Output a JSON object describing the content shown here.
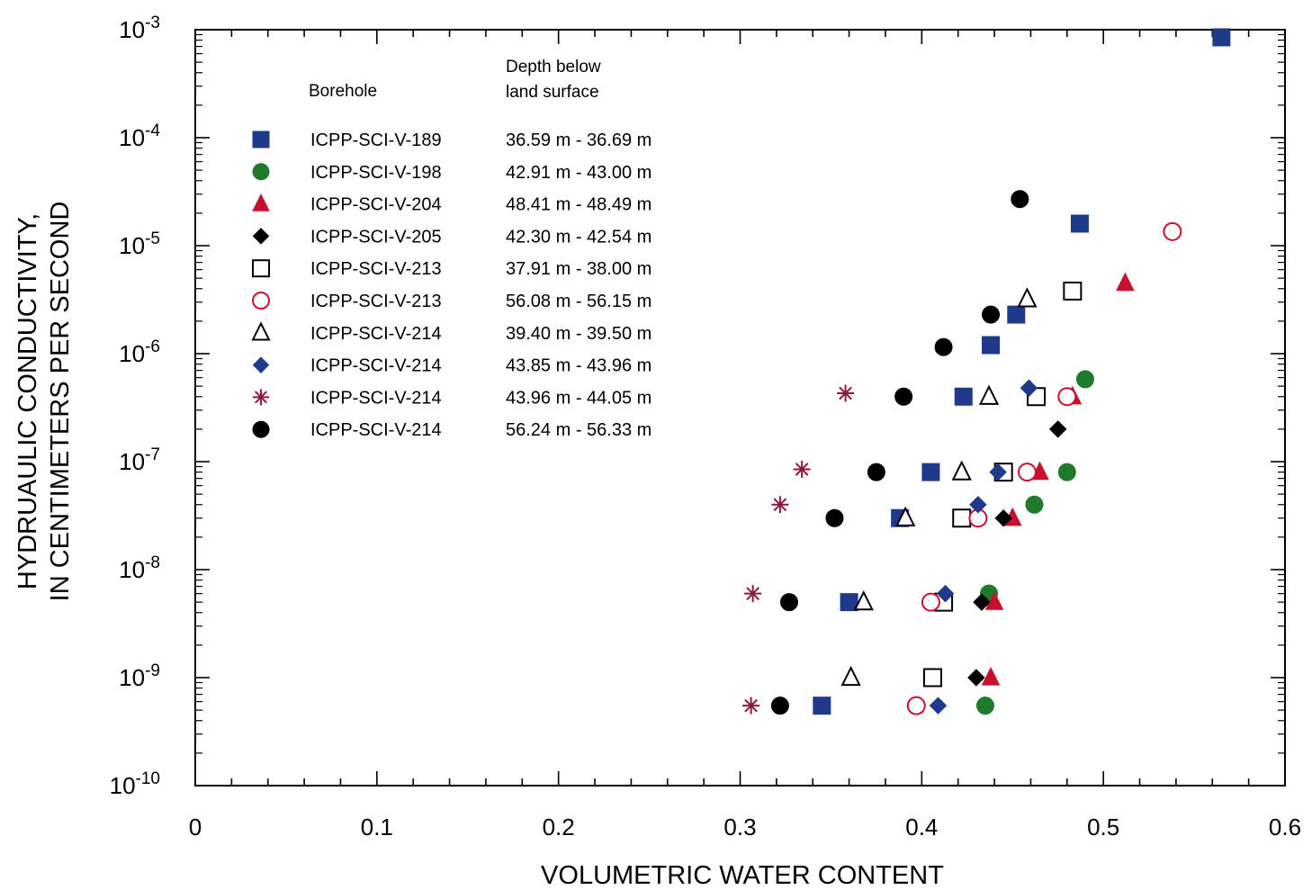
{
  "chart_data": {
    "type": "scatter",
    "xlabel": "VOLUMETRIC WATER CONTENT",
    "ylabel_lines": [
      "HYDRUAULIC CONDUCTIVITY,",
      "IN CENTIMETERS PER SECOND"
    ],
    "xlim": [
      0,
      0.6
    ],
    "ylim": [
      1e-10,
      0.001
    ],
    "yscale": "log",
    "x_ticks": [
      "0",
      "0.1",
      "0.2",
      "0.3",
      "0.4",
      "0.5",
      "0.6"
    ],
    "y_ticks": [
      {
        "base": "10",
        "exp": "-3"
      },
      {
        "base": "10",
        "exp": "-4"
      },
      {
        "base": "10",
        "exp": "-5"
      },
      {
        "base": "10",
        "exp": "-6"
      },
      {
        "base": "10",
        "exp": "-7"
      },
      {
        "base": "10",
        "exp": "-8"
      },
      {
        "base": "10",
        "exp": "-9"
      },
      {
        "base": "10",
        "exp": "-10"
      }
    ],
    "legend": {
      "placement": "top-left",
      "header_borehole": "Borehole",
      "header_depth_lines": [
        "Depth below",
        "land surface"
      ]
    },
    "series": [
      {
        "name": "ICPP-SCI-V-189",
        "depth": "36.59 m - 36.69 m",
        "marker": "square",
        "filled": true,
        "color": "#1f3a8a",
        "points": [
          [
            0.565,
            0.00085
          ],
          [
            0.487,
            1.6e-05
          ],
          [
            0.452,
            2.3e-06
          ],
          [
            0.438,
            1.2e-06
          ],
          [
            0.423,
            4e-07
          ],
          [
            0.405,
            8e-08
          ],
          [
            0.388,
            3e-08
          ],
          [
            0.36,
            5e-09
          ],
          [
            0.345,
            5.5e-10
          ]
        ]
      },
      {
        "name": "ICPP-SCI-V-198",
        "depth": "42.91 m - 43.00 m",
        "marker": "circle",
        "filled": true,
        "color": "#1e7b2c",
        "points": [
          [
            0.49,
            5.8e-07
          ],
          [
            0.48,
            8e-08
          ],
          [
            0.462,
            4e-08
          ],
          [
            0.437,
            6e-09
          ],
          [
            0.435,
            5.5e-10
          ]
        ]
      },
      {
        "name": "ICPP-SCI-V-204",
        "depth": "48.41 m - 48.49 m",
        "marker": "triangle",
        "filled": true,
        "color": "#c8102e",
        "points": [
          [
            0.512,
            4.5e-06
          ],
          [
            0.483,
            4e-07
          ],
          [
            0.465,
            8e-08
          ],
          [
            0.45,
            3e-08
          ],
          [
            0.44,
            5e-09
          ],
          [
            0.438,
            1e-09
          ]
        ]
      },
      {
        "name": "ICPP-SCI-V-205",
        "depth": "42.30 m - 42.54 m",
        "marker": "diamond",
        "filled": true,
        "color": "#000000",
        "points": [
          [
            0.475,
            2e-07
          ],
          [
            0.445,
            3e-08
          ],
          [
            0.433,
            5e-09
          ],
          [
            0.43,
            1e-09
          ]
        ]
      },
      {
        "name": "ICPP-SCI-V-213",
        "depth": "37.91 m - 38.00 m",
        "marker": "square",
        "filled": false,
        "color": "#000000",
        "points": [
          [
            0.483,
            3.8e-06
          ],
          [
            0.463,
            4e-07
          ],
          [
            0.445,
            8e-08
          ],
          [
            0.422,
            3e-08
          ],
          [
            0.412,
            5e-09
          ],
          [
            0.406,
            1e-09
          ]
        ]
      },
      {
        "name": "ICPP-SCI-V-213",
        "depth": "56.08 m - 56.15 m",
        "marker": "circle",
        "filled": false,
        "color": "#c8102e",
        "points": [
          [
            0.538,
            1.35e-05
          ],
          [
            0.48,
            4e-07
          ],
          [
            0.458,
            8e-08
          ],
          [
            0.431,
            3e-08
          ],
          [
            0.405,
            5e-09
          ],
          [
            0.397,
            5.5e-10
          ]
        ]
      },
      {
        "name": "ICPP-SCI-V-214",
        "depth": "39.40 m - 39.50 m",
        "marker": "triangle",
        "filled": false,
        "color": "#000000",
        "points": [
          [
            0.458,
            3.2e-06
          ],
          [
            0.437,
            4e-07
          ],
          [
            0.422,
            8e-08
          ],
          [
            0.391,
            3e-08
          ],
          [
            0.368,
            5e-09
          ],
          [
            0.361,
            1e-09
          ]
        ]
      },
      {
        "name": "ICPP-SCI-V-214",
        "depth": "43.85 m - 43.96 m",
        "marker": "diamond",
        "filled": true,
        "color": "#1f3a8a",
        "points": [
          [
            0.459,
            4.8e-07
          ],
          [
            0.442,
            8e-08
          ],
          [
            0.431,
            4e-08
          ],
          [
            0.413,
            6e-09
          ],
          [
            0.409,
            5.5e-10
          ]
        ]
      },
      {
        "name": "ICPP-SCI-V-214",
        "depth": "43.96 m - 44.05 m",
        "marker": "asterisk",
        "filled": false,
        "color": "#8b1a3a",
        "points": [
          [
            0.358,
            4.3e-07
          ],
          [
            0.334,
            8.5e-08
          ],
          [
            0.322,
            4e-08
          ],
          [
            0.307,
            6e-09
          ],
          [
            0.306,
            5.5e-10
          ]
        ]
      },
      {
        "name": "ICPP-SCI-V-214",
        "depth": "56.24 m - 56.33 m",
        "marker": "circle",
        "filled": true,
        "color": "#000000",
        "points": [
          [
            0.454,
            2.7e-05
          ],
          [
            0.438,
            2.3e-06
          ],
          [
            0.412,
            1.15e-06
          ],
          [
            0.39,
            4e-07
          ],
          [
            0.375,
            8e-08
          ],
          [
            0.352,
            3e-08
          ],
          [
            0.327,
            5e-09
          ],
          [
            0.322,
            5.5e-10
          ]
        ]
      }
    ]
  }
}
